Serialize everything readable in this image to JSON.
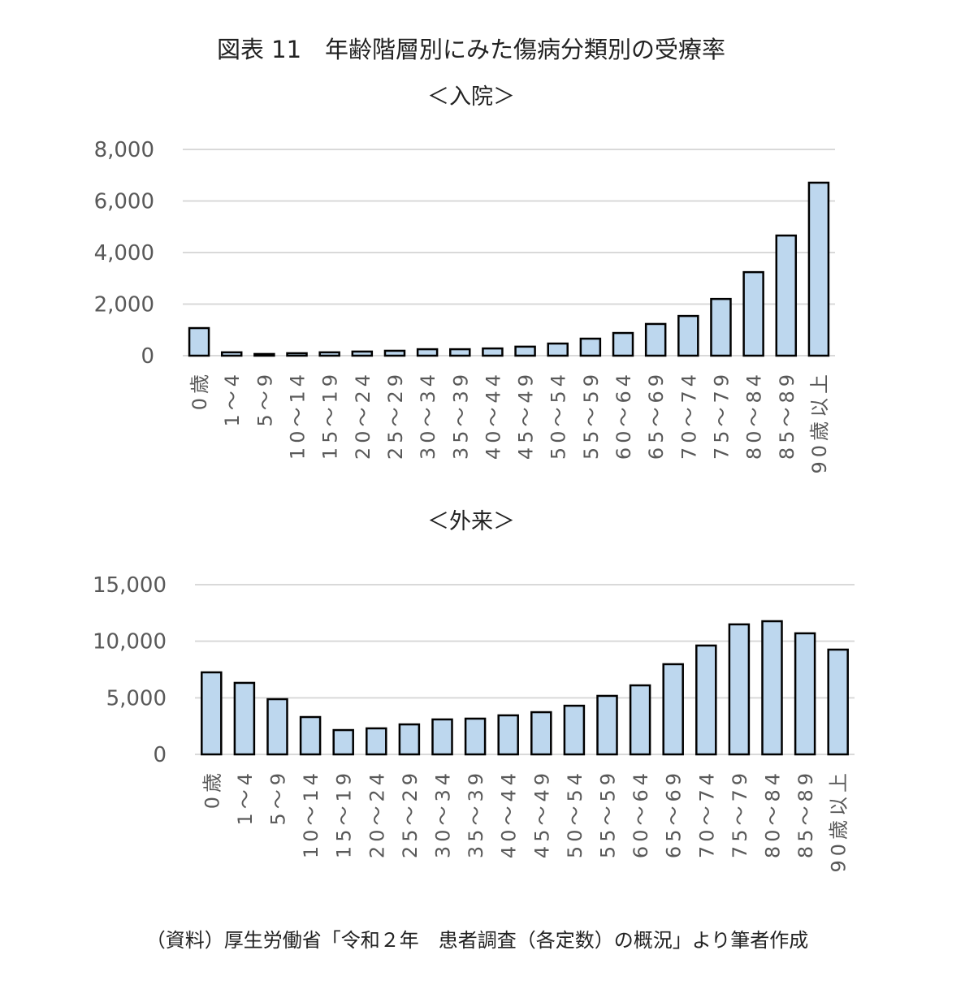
{
  "title": "図表 11　年齢階層別にみた傷病分類別の受療率",
  "note": "（資料）厚生労働省「令和２年　患者調査（各定数）の概況」より筆者作成",
  "colors": {
    "bar": "#bdd7ee",
    "outline": "#000000",
    "grid": "#d9d9d9",
    "tick": "#595959"
  },
  "chart_data": [
    {
      "type": "bar",
      "title": "＜入院＞",
      "categories": [
        "0歳",
        "1～4",
        "5～9",
        "10～14",
        "15～19",
        "20～24",
        "25～29",
        "30～34",
        "35～39",
        "40～44",
        "45～49",
        "50～54",
        "55～59",
        "60～64",
        "65～69",
        "70～74",
        "75～79",
        "80～84",
        "85～89",
        "90歳以上"
      ],
      "values": [
        1070,
        130,
        65,
        95,
        130,
        160,
        190,
        250,
        250,
        280,
        350,
        470,
        660,
        880,
        1230,
        1540,
        2200,
        3240,
        4660,
        6710
      ],
      "yticks": [
        "0",
        "2,000",
        "4,000",
        "6,000",
        "8,000"
      ],
      "ylim": [
        0,
        8000
      ],
      "grid": true
    },
    {
      "type": "bar",
      "title": "＜外来＞",
      "categories": [
        "0歳",
        "1～4",
        "5～9",
        "10～14",
        "15～19",
        "20～24",
        "25～29",
        "30～34",
        "35～39",
        "40～44",
        "45～49",
        "50～54",
        "55～59",
        "60～64",
        "65～69",
        "70～74",
        "75～79",
        "80～84",
        "85～89",
        "90歳以上"
      ],
      "values": [
        7250,
        6320,
        4880,
        3300,
        2150,
        2300,
        2650,
        3090,
        3160,
        3450,
        3730,
        4300,
        5170,
        6100,
        7970,
        9620,
        11490,
        11770,
        10700,
        9260
      ],
      "yticks": [
        "0",
        "5,000",
        "10,000",
        "15,000"
      ],
      "ylim": [
        0,
        15000
      ],
      "grid": true
    }
  ]
}
